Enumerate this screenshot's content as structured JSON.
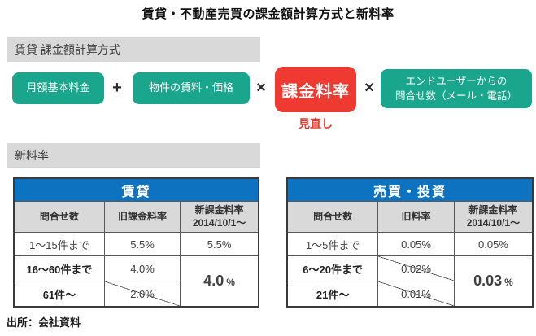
{
  "title": "賃貸・不動産売買の課金額計算方式と新料率",
  "sections": {
    "calc": {
      "header": "賃貸 課金額計算方式",
      "formula": {
        "monthly_fee": "月額基本料金",
        "plus": "+",
        "property_price": "物件の賃料・価格",
        "times1": "×",
        "billing_rate": "課金料率",
        "revision_note": "見直し",
        "times2": "×",
        "inquiries": "エンドユーザーからの\n問合せ数（メール・電話）"
      }
    },
    "new_rates": {
      "header": "新料率",
      "tables": [
        {
          "title": "賃貸",
          "columns": [
            "問合せ数",
            "旧課金料率",
            "新課金料率\n2014/10/1～"
          ],
          "rows": [
            {
              "range": "1～15件まで",
              "old": "5.5%",
              "new": "5.5%"
            },
            {
              "range": "16～60件まで",
              "old": "4.0%"
            },
            {
              "range": "61件～",
              "old": "2.0%"
            }
          ],
          "merged_new_value": "4.0",
          "merged_new_unit": "%"
        },
        {
          "title": "売買・投資",
          "columns": [
            "問合せ数",
            "旧料率",
            "新課金料率\n2014/10/1～"
          ],
          "rows": [
            {
              "range": "1～5件まで",
              "old": "0.05%",
              "new": "0.05%"
            },
            {
              "range": "6～20件まで",
              "old": "0.02%"
            },
            {
              "range": "21件～",
              "old": "0.01%"
            }
          ],
          "merged_new_value": "0.03",
          "merged_new_unit": "%"
        }
      ]
    }
  },
  "source": "出所：会社資料",
  "colors": {
    "teal_box": "#1aa68d",
    "red_box": "#ee3a30",
    "table_header_blue": "#0d72bf",
    "table_red_value": "#d7282f",
    "gray_bar": "#d9d9d9"
  }
}
